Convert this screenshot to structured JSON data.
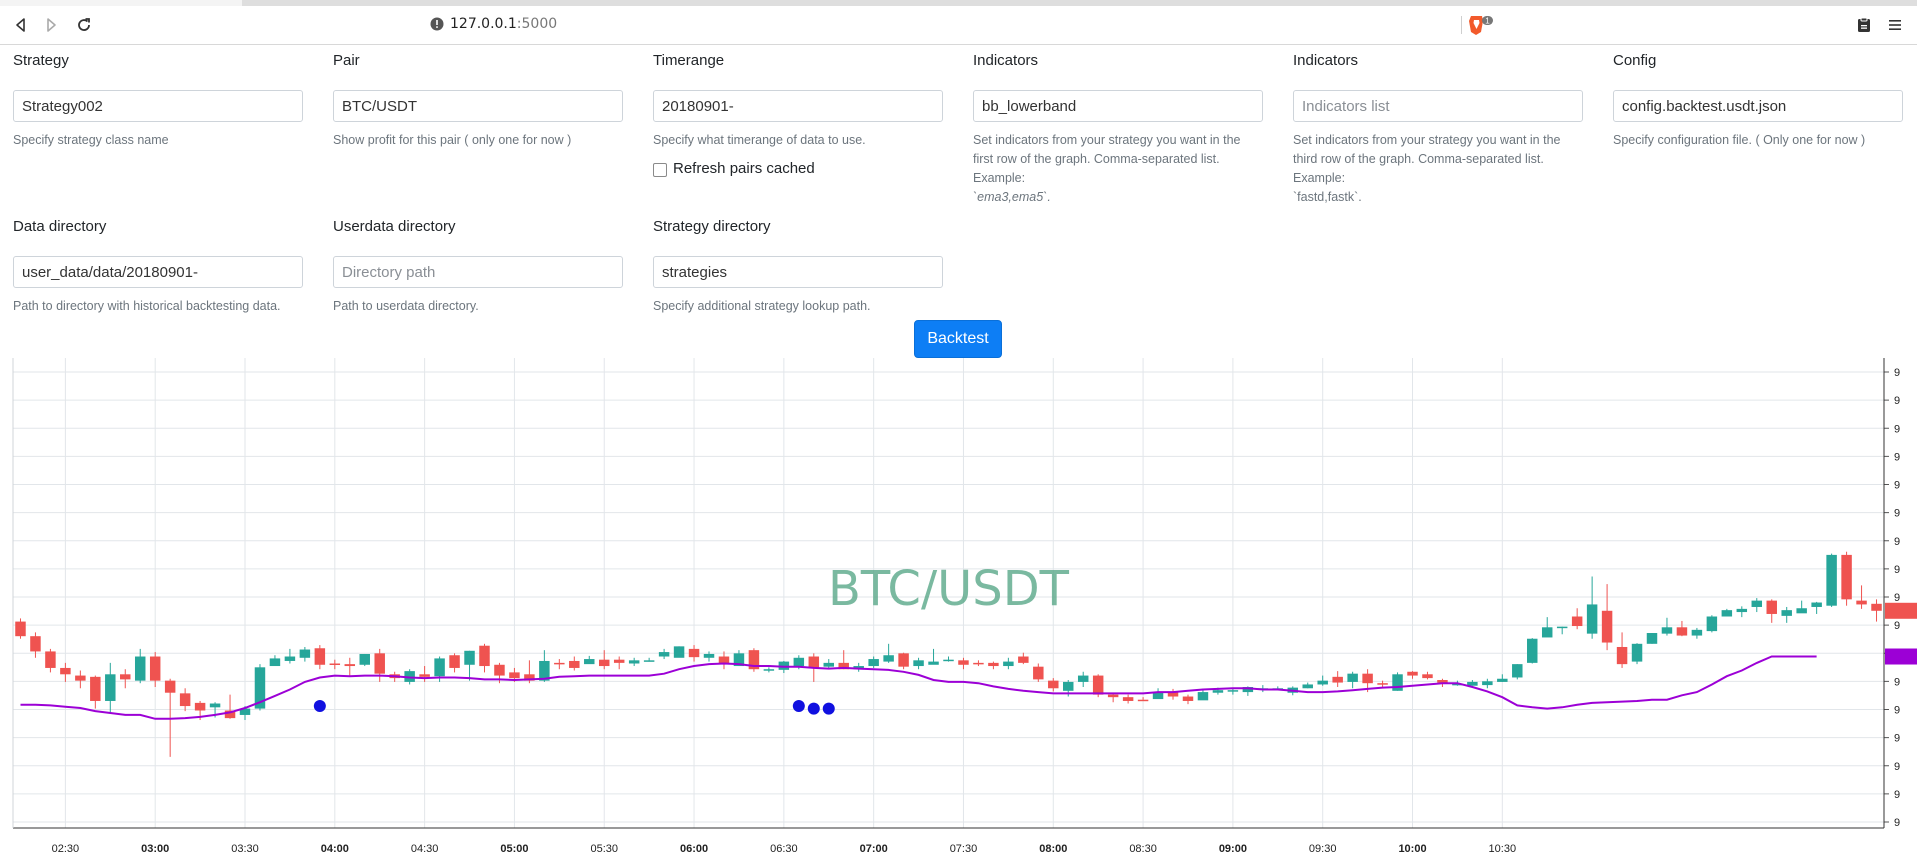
{
  "browser": {
    "url_host": "127.0.0.1",
    "url_port": ":5000",
    "shield_badge": "1",
    "icons": [
      "back-icon",
      "forward-icon",
      "reload-icon",
      "info-icon",
      "brave-shield-icon",
      "wallet-icon",
      "menu-icon"
    ]
  },
  "form": {
    "strategy": {
      "label": "Strategy",
      "value": "Strategy002",
      "help": "Specify strategy class name"
    },
    "pair": {
      "label": "Pair",
      "value": "BTC/USDT",
      "help": "Show profit for this pair ( only one for now )"
    },
    "timerange": {
      "label": "Timerange",
      "value": "20180901-",
      "help": "Specify what timerange of data to use."
    },
    "refresh": {
      "label": "Refresh pairs cached",
      "checked": false
    },
    "indicators1": {
      "label": "Indicators",
      "value": "bb_lowerband",
      "help_line1": "Set indicators from your strategy you want in the",
      "help_line2": "first row of the graph. Comma-separated list.",
      "help_line3": "Example:",
      "help_example": "`ema3,ema5`."
    },
    "indicators2": {
      "label": "Indicators",
      "value": "",
      "placeholder": "Indicators list",
      "help_line1": "Set indicators from your strategy you want in the",
      "help_line2": "third row of the graph. Comma-separated list.",
      "help_line3": "Example:",
      "help_example": "`fastd,fastk`."
    },
    "config": {
      "label": "Config",
      "value": "config.backtest.usdt.json",
      "help": "Specify configuration file. ( Only one for now )"
    },
    "datadir": {
      "label": "Data directory",
      "value": "user_data/data/20180901-",
      "help": "Path to directory with historical backtesting data."
    },
    "userdatadir": {
      "label": "Userdata directory",
      "value": "",
      "placeholder": "Directory path",
      "help": "Path to userdata directory."
    },
    "strategydir": {
      "label": "Strategy directory",
      "value": "strategies",
      "help": "Specify additional strategy lookup path."
    },
    "backtest_label": "Backtest"
  },
  "colors": {
    "up": "#26a69a",
    "down": "#ef5350",
    "indicator": "#9c00d6",
    "buy_marker": "#1010e0",
    "button": "#0d7ef5"
  },
  "chart_data": {
    "type": "candlestick",
    "title": "BTC/USDT",
    "watermark": "BTC/USDT",
    "interval_minutes": 5,
    "start_time": "02:15",
    "x_tick_labels": [
      "02:30",
      "03:00",
      "03:30",
      "04:00",
      "04:30",
      "05:00",
      "05:30",
      "06:00",
      "06:30",
      "07:00",
      "07:30",
      "08:00",
      "08:30",
      "09:00",
      "09:30",
      "10:00",
      "10:30"
    ],
    "x_tick_bold": [
      "03:00",
      "04:00",
      "05:00",
      "06:00",
      "07:00",
      "08:00",
      "09:00",
      "10:00"
    ],
    "y_tick_labels": [
      "9",
      "9",
      "9",
      "9",
      "9",
      "9",
      "9",
      "9",
      "9",
      "9",
      "9",
      "9",
      "9",
      "9",
      "9",
      "9",
      "9"
    ],
    "ylim": [
      150,
      890
    ],
    "grid": true,
    "candles": [
      [
        475,
        452,
        480,
        448
      ],
      [
        452,
        428,
        458,
        418
      ],
      [
        428,
        402,
        432,
        395
      ],
      [
        402,
        392,
        410,
        380
      ],
      [
        390,
        382,
        398,
        370
      ],
      [
        388,
        350,
        390,
        338
      ],
      [
        350,
        392,
        410,
        330
      ],
      [
        392,
        384,
        400,
        370
      ],
      [
        382,
        420,
        432,
        378
      ],
      [
        420,
        382,
        427,
        372
      ],
      [
        382,
        363,
        385,
        262
      ],
      [
        362,
        342,
        370,
        334
      ],
      [
        347,
        335,
        350,
        320
      ],
      [
        340,
        346,
        348,
        324
      ],
      [
        335,
        323,
        360,
        322
      ],
      [
        328,
        338,
        342,
        320
      ],
      [
        338,
        403,
        408,
        335
      ],
      [
        405,
        417,
        422,
        410
      ],
      [
        413,
        420,
        432,
        409
      ],
      [
        418,
        431,
        435,
        412
      ],
      [
        433,
        407,
        438,
        400
      ],
      [
        409,
        408,
        415,
        400
      ],
      [
        408,
        405,
        418,
        390
      ],
      [
        407,
        424,
        424,
        405
      ],
      [
        425,
        393,
        432,
        380
      ],
      [
        392,
        386,
        396,
        380
      ],
      [
        380,
        397,
        400,
        376
      ],
      [
        392,
        388,
        405,
        380
      ],
      [
        389,
        417,
        420,
        380
      ],
      [
        422,
        402,
        425,
        395
      ],
      [
        407,
        429,
        429,
        382
      ],
      [
        437,
        405,
        440,
        395
      ],
      [
        407,
        390,
        410,
        378
      ],
      [
        395,
        386,
        402,
        380
      ],
      [
        392,
        382,
        414,
        378
      ],
      [
        382,
        413,
        430,
        380
      ],
      [
        410,
        409,
        416,
        400
      ],
      [
        413,
        402,
        420,
        398
      ],
      [
        408,
        416,
        421,
        412
      ],
      [
        415,
        405,
        430,
        400
      ],
      [
        415,
        410,
        420,
        400
      ],
      [
        409,
        414,
        418,
        405
      ],
      [
        413,
        414,
        418,
        412
      ],
      [
        420,
        427,
        432,
        416
      ],
      [
        418,
        436,
        436,
        420
      ],
      [
        432,
        419,
        438,
        412
      ],
      [
        418,
        424,
        428,
        412
      ],
      [
        420,
        409,
        428,
        400
      ],
      [
        405,
        425,
        430,
        405
      ],
      [
        430,
        400,
        433,
        396
      ],
      [
        400,
        400,
        403,
        395
      ],
      [
        399,
        412,
        413,
        394
      ],
      [
        405,
        418,
        422,
        400
      ],
      [
        420,
        402,
        425,
        380
      ],
      [
        404,
        410,
        416,
        400
      ],
      [
        410,
        400,
        430,
        400
      ],
      [
        400,
        405,
        410,
        396
      ],
      [
        405,
        416,
        420,
        402
      ],
      [
        412,
        422,
        440,
        410
      ],
      [
        425,
        404,
        426,
        400
      ],
      [
        405,
        414,
        418,
        400
      ],
      [
        407,
        412,
        432,
        408
      ],
      [
        415,
        415,
        420,
        412
      ],
      [
        414,
        407,
        418,
        400
      ],
      [
        410,
        408,
        414,
        405
      ],
      [
        410,
        405,
        412,
        400
      ],
      [
        405,
        412,
        418,
        400
      ],
      [
        420,
        410,
        426,
        408
      ],
      [
        404,
        384,
        409,
        380
      ],
      [
        382,
        370,
        386,
        365
      ],
      [
        366,
        380,
        383,
        357
      ],
      [
        380,
        390,
        396,
        372
      ],
      [
        390,
        360,
        392,
        356
      ],
      [
        360,
        356,
        362,
        348
      ],
      [
        356,
        350,
        360,
        346
      ],
      [
        352,
        351,
        356,
        352
      ],
      [
        353,
        364,
        370,
        356
      ],
      [
        365,
        357,
        369,
        352
      ],
      [
        357,
        350,
        360,
        345
      ],
      [
        351,
        364,
        368,
        352
      ],
      [
        363,
        367,
        371,
        360
      ],
      [
        367,
        367,
        370,
        360
      ],
      [
        364,
        372,
        373,
        358
      ],
      [
        370,
        370,
        375,
        364
      ],
      [
        370,
        370,
        373,
        368
      ],
      [
        363,
        371,
        373,
        359
      ],
      [
        370,
        376,
        379,
        370
      ],
      [
        376,
        382,
        390,
        374
      ],
      [
        388,
        379,
        397,
        372
      ],
      [
        380,
        393,
        396,
        370
      ],
      [
        393,
        378,
        400,
        364
      ],
      [
        378,
        376,
        382,
        370
      ],
      [
        366,
        392,
        395,
        366
      ],
      [
        396,
        390,
        397,
        385
      ],
      [
        392,
        386,
        396,
        384
      ],
      [
        383,
        379,
        385,
        372
      ],
      [
        377,
        377,
        382,
        374
      ],
      [
        374,
        380,
        383,
        374
      ],
      [
        375,
        381,
        385,
        370
      ],
      [
        380,
        385,
        392,
        380
      ],
      [
        387,
        408,
        408,
        384
      ],
      [
        410,
        448,
        449,
        409
      ],
      [
        450,
        466,
        482,
        452
      ],
      [
        465,
        467,
        467,
        455
      ],
      [
        483,
        468,
        496,
        463
      ],
      [
        456,
        502,
        546,
        448
      ],
      [
        492,
        442,
        534,
        430
      ],
      [
        435,
        408,
        458,
        402
      ],
      [
        412,
        440,
        441,
        408
      ],
      [
        440,
        457,
        457,
        440
      ],
      [
        456,
        466,
        481,
        453
      ],
      [
        466,
        453,
        476,
        452
      ],
      [
        453,
        462,
        465,
        448
      ],
      [
        460,
        483,
        485,
        458
      ],
      [
        483,
        493,
        495,
        483
      ],
      [
        490,
        495,
        499,
        482
      ],
      [
        498,
        508,
        512,
        490
      ],
      [
        508,
        487,
        510,
        473
      ],
      [
        484,
        493,
        498,
        473
      ],
      [
        488,
        496,
        508,
        493
      ],
      [
        498,
        505,
        506,
        487
      ],
      [
        500,
        580,
        582,
        498
      ],
      [
        580,
        510,
        585,
        500
      ],
      [
        508,
        502,
        532,
        495
      ],
      [
        503,
        492,
        510,
        475
      ]
    ],
    "indicator": {
      "name": "bb_lowerband",
      "values": [
        344,
        344,
        343,
        341,
        339,
        334,
        331,
        328,
        328,
        322,
        322,
        323,
        325,
        328,
        332,
        339,
        348,
        358,
        368,
        380,
        387,
        390,
        389,
        390,
        390,
        389,
        387,
        386,
        387,
        387,
        386,
        384,
        384,
        383,
        384,
        385,
        388,
        389,
        390,
        390,
        390,
        390,
        390,
        393,
        400,
        405,
        408,
        409,
        408,
        405,
        405,
        404,
        404,
        402,
        401,
        402,
        401,
        400,
        399,
        396,
        391,
        383,
        380,
        380,
        378,
        373,
        369,
        366,
        364,
        362,
        362,
        362,
        362,
        362,
        362,
        362,
        364,
        364,
        366,
        368,
        369,
        370,
        370,
        368,
        368,
        366,
        364,
        364,
        365,
        367,
        369,
        371,
        372,
        374,
        376,
        378,
        378,
        372,
        365,
        356,
        343,
        340,
        338,
        340,
        344,
        347,
        348,
        349,
        350,
        352,
        352,
        359,
        364,
        376,
        389,
        398,
        410,
        420,
        420,
        420,
        420
      ]
    },
    "buy_markers": [
      [
        20,
        342
      ],
      [
        52,
        342
      ],
      [
        53,
        338
      ],
      [
        54,
        338
      ]
    ]
  }
}
